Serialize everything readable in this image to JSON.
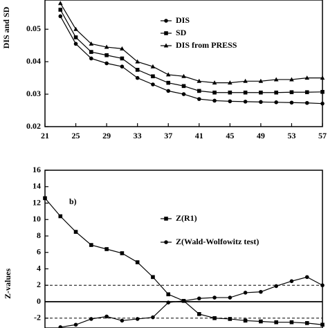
{
  "chart_data": [
    {
      "type": "line",
      "y_label": "DIS and SD",
      "x": [
        23,
        25,
        27,
        29,
        31,
        33,
        35,
        37,
        39,
        41,
        43,
        45,
        47,
        49,
        51,
        53,
        55,
        57
      ],
      "xlim": [
        21,
        57
      ],
      "xticks": [
        21,
        25,
        29,
        33,
        37,
        41,
        45,
        49,
        53,
        57
      ],
      "ylim": [
        0.02,
        0.059
      ],
      "yticks": [
        0.02,
        0.03,
        0.04,
        0.05
      ],
      "series": [
        {
          "name": "DIS",
          "marker": "circle",
          "color": "#000000",
          "values": [
            0.054,
            0.0455,
            0.041,
            0.0395,
            0.0385,
            0.035,
            0.033,
            0.031,
            0.03,
            0.0285,
            0.028,
            0.0278,
            0.0277,
            0.0276,
            0.0275,
            0.0274,
            0.0273,
            0.0271
          ]
        },
        {
          "name": "SD",
          "marker": "square",
          "color": "#000000",
          "values": [
            0.056,
            0.0475,
            0.043,
            0.042,
            0.041,
            0.0375,
            0.0355,
            0.0335,
            0.0325,
            0.031,
            0.0305,
            0.0305,
            0.0305,
            0.0305,
            0.0305,
            0.0306,
            0.0306,
            0.0307
          ]
        },
        {
          "name": "DIS from PRESS",
          "marker": "triangle",
          "color": "#000000",
          "values": [
            0.058,
            0.05,
            0.0455,
            0.0445,
            0.044,
            0.04,
            0.0385,
            0.036,
            0.0355,
            0.034,
            0.0335,
            0.0335,
            0.034,
            0.034,
            0.0345,
            0.0345,
            0.035,
            0.035
          ]
        }
      ]
    },
    {
      "type": "line",
      "y_label": "Z-values",
      "annotation": "b)",
      "x": [
        21,
        23,
        25,
        27,
        29,
        31,
        33,
        35,
        37,
        39,
        41,
        43,
        45,
        47,
        49,
        51,
        53,
        55,
        57
      ],
      "xlim": [
        21,
        57
      ],
      "ylim": [
        -3.2,
        16
      ],
      "yticks": [
        -2,
        0,
        2,
        4,
        6,
        8,
        10,
        12,
        14,
        16
      ],
      "reference_lines": [
        {
          "value": 2,
          "style": "dashed"
        },
        {
          "value": 0,
          "style": "solid"
        },
        {
          "value": -2,
          "style": "dashed"
        }
      ],
      "series": [
        {
          "name": "Z(R1)",
          "marker": "square",
          "color": "#000000",
          "values": [
            12.6,
            10.4,
            8.5,
            6.9,
            6.4,
            5.9,
            4.8,
            3.0,
            0.9,
            0.1,
            -1.5,
            -2.0,
            -2.1,
            -2.3,
            -2.4,
            -2.5,
            -2.5,
            -2.6,
            -2.8
          ]
        },
        {
          "name": "Z(Wald-Wolfowitz test)",
          "marker": "circle",
          "color": "#000000",
          "values": [
            null,
            -3.1,
            -2.8,
            -2.1,
            -1.8,
            -2.3,
            -2.1,
            -1.9,
            -0.1,
            0.1,
            0.4,
            0.5,
            0.5,
            1.1,
            1.2,
            1.9,
            2.5,
            3.0,
            2.0
          ]
        }
      ]
    }
  ]
}
